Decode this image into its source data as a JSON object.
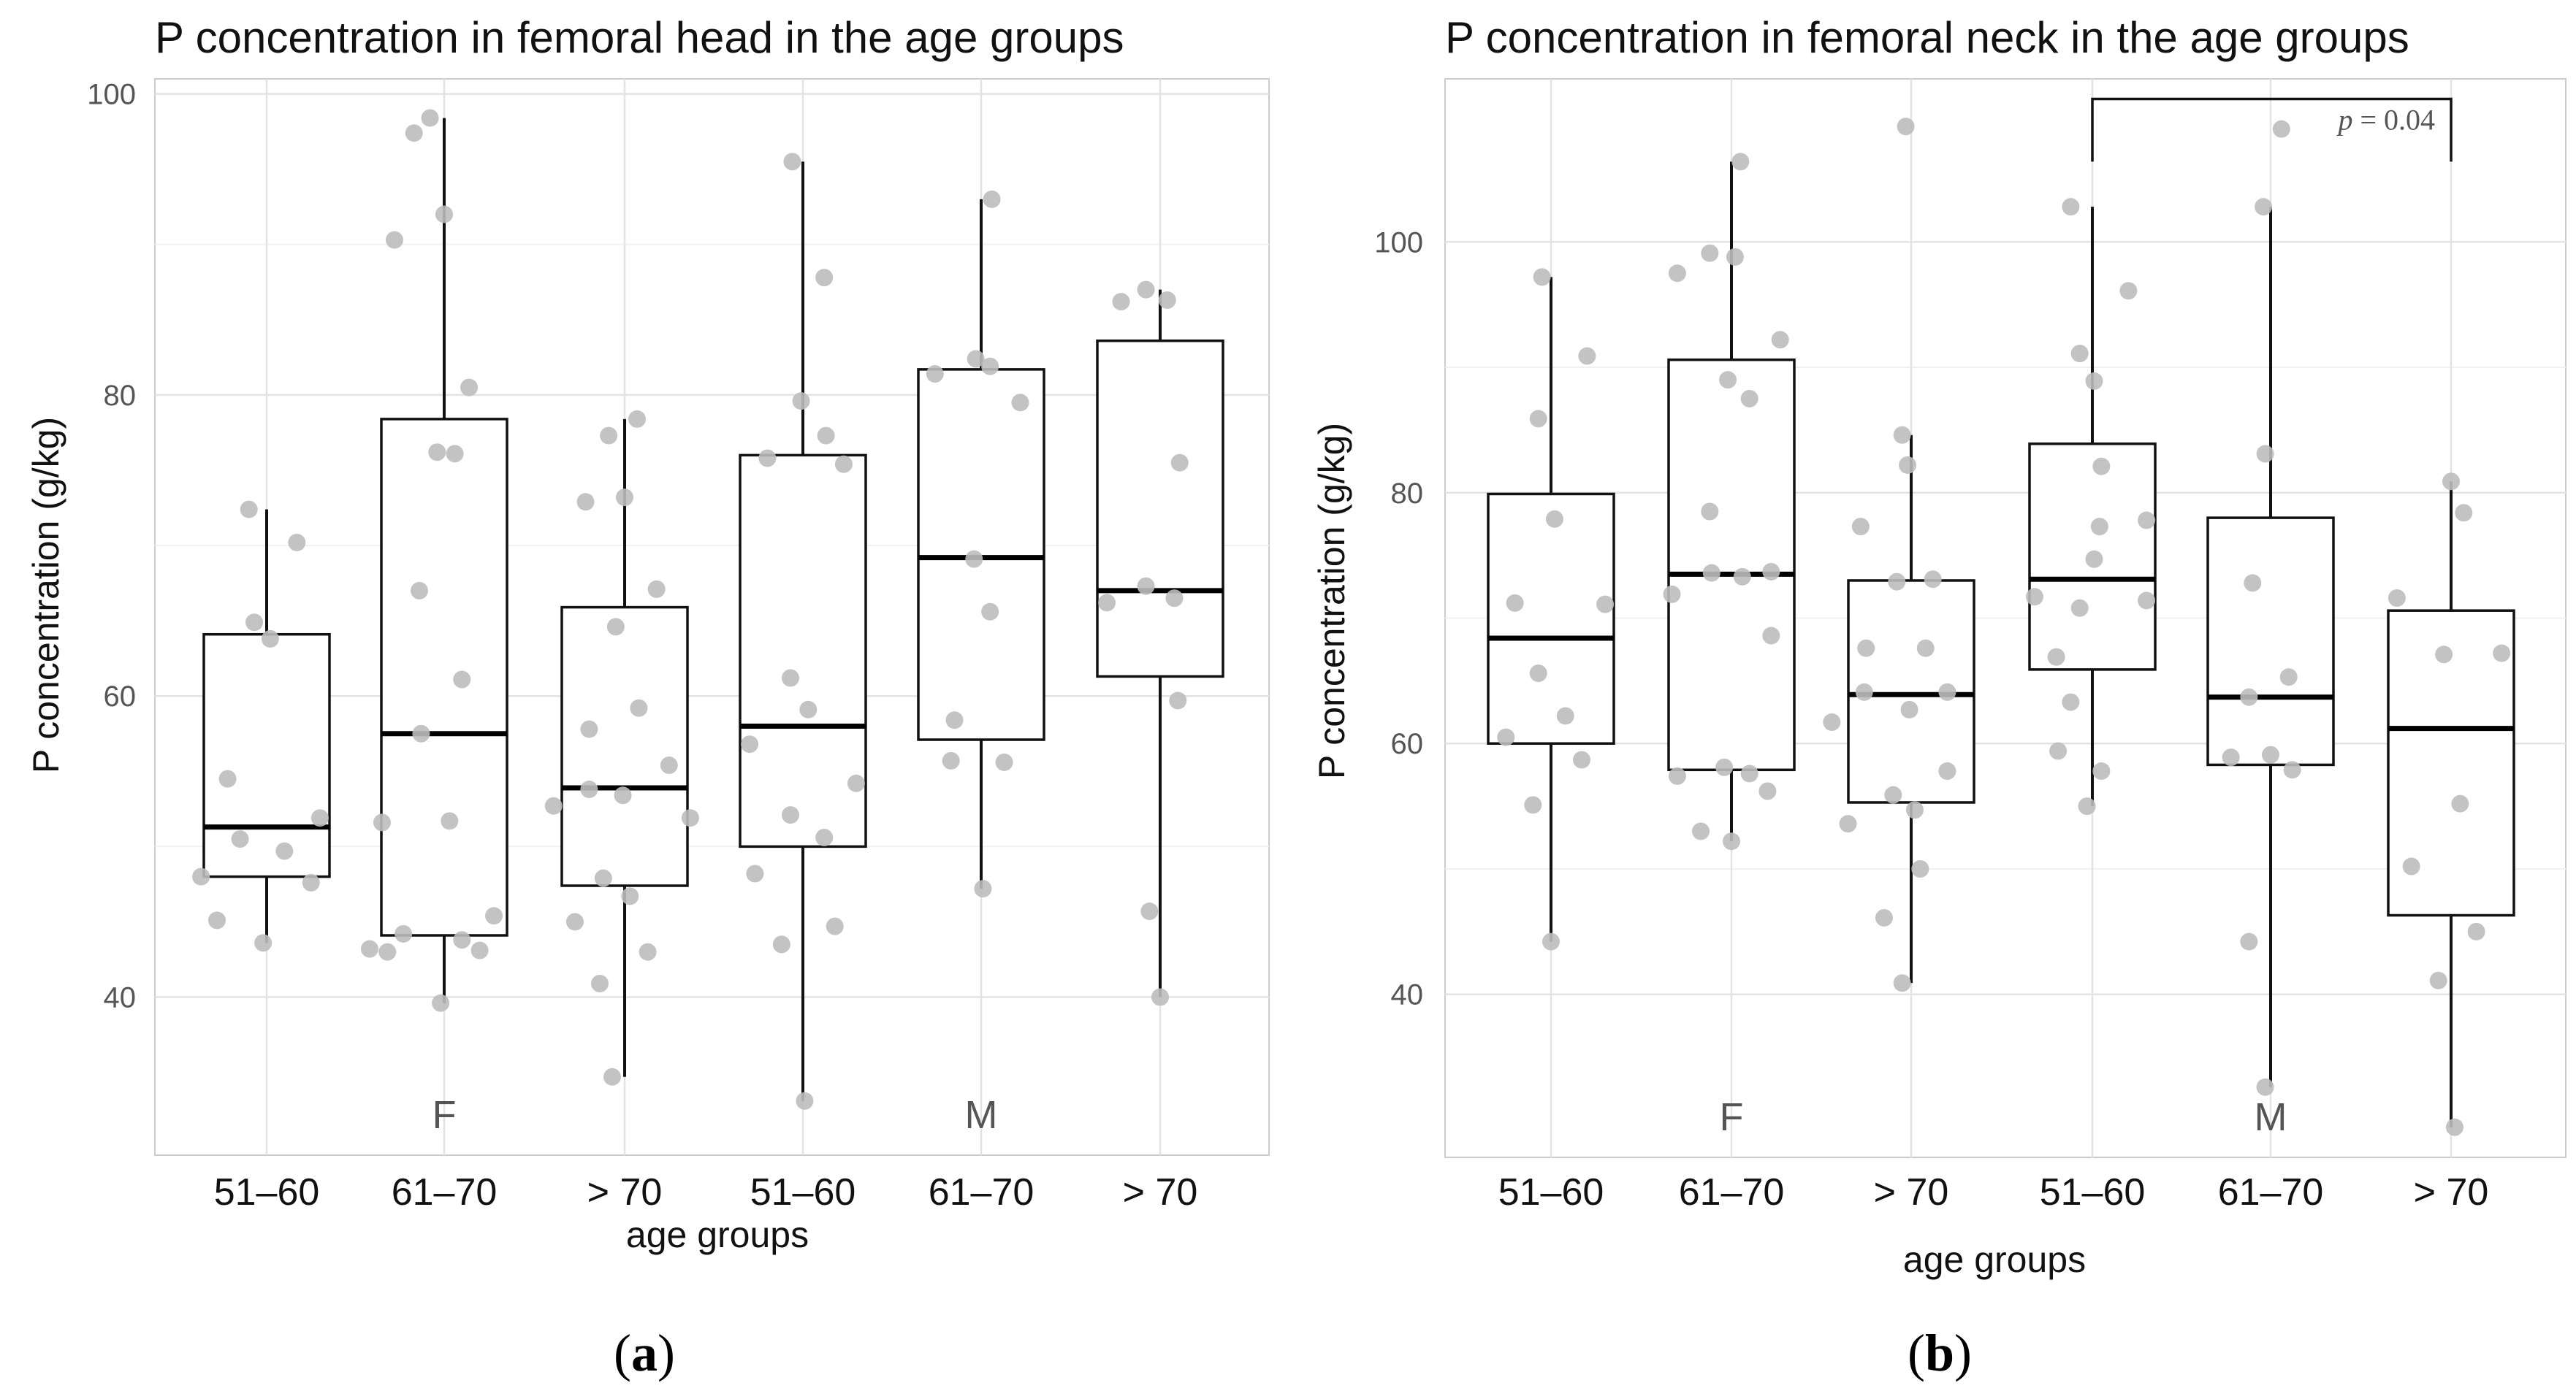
{
  "panel_labels": [
    {
      "open": "(",
      "letter": "a",
      "close": ")"
    },
    {
      "open": "(",
      "letter": "b",
      "close": ")"
    }
  ],
  "chart_data": [
    {
      "type": "box",
      "title": "P concentration in   femoral head in the age groups",
      "xlabel": "age groups",
      "ylabel": "P concentration  (g/kg)",
      "ylim": [
        29.5,
        101
      ],
      "yticks": [
        40,
        60,
        80,
        100
      ],
      "categories": [
        "51–60",
        "61–70",
        "> 70",
        "51–60",
        "61–70",
        "> 70"
      ],
      "group_labels": [
        {
          "label": "F",
          "category_index": 1
        },
        {
          "label": "M",
          "category_index": 4
        }
      ],
      "boxes": [
        {
          "q1": 48.0,
          "median": 51.3,
          "q3": 64.1,
          "whisker_low": 43.6,
          "whisker_high": 72.4
        },
        {
          "q1": 44.1,
          "median": 57.5,
          "q3": 78.4,
          "whisker_low": 39.6,
          "whisker_high": 98.4
        },
        {
          "q1": 47.4,
          "median": 53.9,
          "q3": 65.9,
          "whisker_low": 34.7,
          "whisker_high": 78.4
        },
        {
          "q1": 50.0,
          "median": 58.0,
          "q3": 76.0,
          "whisker_low": 33.1,
          "whisker_high": 95.5
        },
        {
          "q1": 57.1,
          "median": 69.2,
          "q3": 81.7,
          "whisker_low": 47.2,
          "whisker_high": 93.0
        },
        {
          "q1": 61.3,
          "median": 67.0,
          "q3": 83.6,
          "whisker_low": 40.0,
          "whisker_high": 87.0
        }
      ],
      "points": [
        {
          "cat": 0,
          "dx": -0.1,
          "y": 72.4
        },
        {
          "cat": 0,
          "dx": 0.17,
          "y": 70.2
        },
        {
          "cat": 0,
          "dx": -0.07,
          "y": 64.9
        },
        {
          "cat": 0,
          "dx": 0.02,
          "y": 63.8
        },
        {
          "cat": 0,
          "dx": -0.22,
          "y": 54.5
        },
        {
          "cat": 0,
          "dx": 0.3,
          "y": 51.9
        },
        {
          "cat": 0,
          "dx": -0.15,
          "y": 50.5
        },
        {
          "cat": 0,
          "dx": 0.1,
          "y": 49.7
        },
        {
          "cat": 0,
          "dx": -0.37,
          "y": 48.0
        },
        {
          "cat": 0,
          "dx": 0.25,
          "y": 47.6
        },
        {
          "cat": 0,
          "dx": -0.28,
          "y": 45.1
        },
        {
          "cat": 0,
          "dx": -0.02,
          "y": 43.6
        },
        {
          "cat": 1,
          "dx": -0.08,
          "y": 98.4
        },
        {
          "cat": 1,
          "dx": -0.17,
          "y": 97.4
        },
        {
          "cat": 1,
          "dx": 0.0,
          "y": 92.0
        },
        {
          "cat": 1,
          "dx": -0.28,
          "y": 90.3
        },
        {
          "cat": 1,
          "dx": 0.14,
          "y": 80.5
        },
        {
          "cat": 1,
          "dx": -0.04,
          "y": 76.2
        },
        {
          "cat": 1,
          "dx": 0.06,
          "y": 76.1
        },
        {
          "cat": 1,
          "dx": -0.14,
          "y": 67.0
        },
        {
          "cat": 1,
          "dx": 0.1,
          "y": 61.1
        },
        {
          "cat": 1,
          "dx": -0.13,
          "y": 57.5
        },
        {
          "cat": 1,
          "dx": -0.35,
          "y": 51.6
        },
        {
          "cat": 1,
          "dx": 0.03,
          "y": 51.7
        },
        {
          "cat": 1,
          "dx": 0.28,
          "y": 45.4
        },
        {
          "cat": 1,
          "dx": -0.23,
          "y": 44.2
        },
        {
          "cat": 1,
          "dx": 0.1,
          "y": 43.8
        },
        {
          "cat": 1,
          "dx": -0.42,
          "y": 43.2
        },
        {
          "cat": 1,
          "dx": -0.32,
          "y": 43.0
        },
        {
          "cat": 1,
          "dx": 0.2,
          "y": 43.1
        },
        {
          "cat": 1,
          "dx": -0.02,
          "y": 39.6
        },
        {
          "cat": 2,
          "dx": 0.07,
          "y": 78.4
        },
        {
          "cat": 2,
          "dx": -0.09,
          "y": 77.3
        },
        {
          "cat": 2,
          "dx": 0.0,
          "y": 73.2
        },
        {
          "cat": 2,
          "dx": -0.22,
          "y": 72.9
        },
        {
          "cat": 2,
          "dx": 0.18,
          "y": 67.1
        },
        {
          "cat": 2,
          "dx": -0.05,
          "y": 64.6
        },
        {
          "cat": 2,
          "dx": 0.08,
          "y": 59.2
        },
        {
          "cat": 2,
          "dx": -0.2,
          "y": 57.8
        },
        {
          "cat": 2,
          "dx": 0.25,
          "y": 55.4
        },
        {
          "cat": 2,
          "dx": -0.2,
          "y": 53.8
        },
        {
          "cat": 2,
          "dx": -0.01,
          "y": 53.4
        },
        {
          "cat": 2,
          "dx": -0.4,
          "y": 52.7
        },
        {
          "cat": 2,
          "dx": 0.37,
          "y": 51.9
        },
        {
          "cat": 2,
          "dx": -0.12,
          "y": 47.9
        },
        {
          "cat": 2,
          "dx": 0.03,
          "y": 46.7
        },
        {
          "cat": 2,
          "dx": -0.28,
          "y": 45.0
        },
        {
          "cat": 2,
          "dx": 0.13,
          "y": 43.0
        },
        {
          "cat": 2,
          "dx": -0.14,
          "y": 40.9
        },
        {
          "cat": 2,
          "dx": -0.07,
          "y": 34.7
        },
        {
          "cat": 3,
          "dx": -0.06,
          "y": 95.5
        },
        {
          "cat": 3,
          "dx": 0.12,
          "y": 87.8
        },
        {
          "cat": 3,
          "dx": -0.01,
          "y": 79.6
        },
        {
          "cat": 3,
          "dx": -0.2,
          "y": 75.8
        },
        {
          "cat": 3,
          "dx": 0.13,
          "y": 77.3
        },
        {
          "cat": 3,
          "dx": 0.23,
          "y": 75.4
        },
        {
          "cat": 3,
          "dx": -0.07,
          "y": 61.2
        },
        {
          "cat": 3,
          "dx": 0.03,
          "y": 59.1
        },
        {
          "cat": 3,
          "dx": -0.3,
          "y": 56.8
        },
        {
          "cat": 3,
          "dx": 0.3,
          "y": 54.2
        },
        {
          "cat": 3,
          "dx": -0.07,
          "y": 52.1
        },
        {
          "cat": 3,
          "dx": 0.12,
          "y": 50.6
        },
        {
          "cat": 3,
          "dx": -0.27,
          "y": 48.2
        },
        {
          "cat": 3,
          "dx": 0.18,
          "y": 44.7
        },
        {
          "cat": 3,
          "dx": -0.12,
          "y": 43.5
        },
        {
          "cat": 3,
          "dx": 0.01,
          "y": 33.1
        },
        {
          "cat": 4,
          "dx": 0.06,
          "y": 93.0
        },
        {
          "cat": 4,
          "dx": -0.03,
          "y": 82.4
        },
        {
          "cat": 4,
          "dx": -0.26,
          "y": 81.4
        },
        {
          "cat": 4,
          "dx": 0.05,
          "y": 81.9
        },
        {
          "cat": 4,
          "dx": 0.22,
          "y": 79.5
        },
        {
          "cat": 4,
          "dx": -0.04,
          "y": 69.1
        },
        {
          "cat": 4,
          "dx": 0.05,
          "y": 65.6
        },
        {
          "cat": 4,
          "dx": -0.15,
          "y": 58.4
        },
        {
          "cat": 4,
          "dx": -0.17,
          "y": 55.7
        },
        {
          "cat": 4,
          "dx": 0.13,
          "y": 55.6
        },
        {
          "cat": 4,
          "dx": 0.01,
          "y": 47.2
        },
        {
          "cat": 5,
          "dx": -0.22,
          "y": 86.2
        },
        {
          "cat": 5,
          "dx": -0.08,
          "y": 87.0
        },
        {
          "cat": 5,
          "dx": 0.04,
          "y": 86.3
        },
        {
          "cat": 5,
          "dx": 0.11,
          "y": 75.5
        },
        {
          "cat": 5,
          "dx": -0.3,
          "y": 66.2
        },
        {
          "cat": 5,
          "dx": -0.08,
          "y": 67.3
        },
        {
          "cat": 5,
          "dx": 0.08,
          "y": 66.5
        },
        {
          "cat": 5,
          "dx": 0.1,
          "y": 59.7
        },
        {
          "cat": 5,
          "dx": -0.06,
          "y": 45.7
        },
        {
          "cat": 5,
          "dx": 0.0,
          "y": 40.0
        }
      ]
    },
    {
      "type": "box",
      "title": "P concentration in   femoral neck in the age groups",
      "xlabel": "age groups",
      "ylabel": "P concentration  (g/kg)",
      "ylim": [
        27,
        113
      ],
      "yticks": [
        40,
        60,
        80,
        100
      ],
      "categories": [
        "51–60",
        "61–70",
        "> 70",
        "51–60",
        "61–70",
        "> 70"
      ],
      "group_labels": [
        {
          "label": "F",
          "category_index": 1
        },
        {
          "label": "M",
          "category_index": 4
        }
      ],
      "annotation": {
        "text_var": "p",
        "text_eq": " = 0.04",
        "from_category": 3,
        "to_category": 5,
        "y": 111.4,
        "tick_to": 106.4
      },
      "boxes": [
        {
          "q1": 60.0,
          "median": 68.4,
          "q3": 79.9,
          "whisker_low": 44.2,
          "whisker_high": 97.2
        },
        {
          "q1": 57.9,
          "median": 73.5,
          "q3": 90.6,
          "whisker_low": 52.2,
          "whisker_high": 106.4
        },
        {
          "q1": 55.3,
          "median": 63.9,
          "q3": 73.0,
          "whisker_low": 40.9,
          "whisker_high": 84.6
        },
        {
          "q1": 65.9,
          "median": 73.1,
          "q3": 83.9,
          "whisker_low": 55.0,
          "whisker_high": 102.8
        },
        {
          "q1": 58.3,
          "median": 63.7,
          "q3": 78.0,
          "whisker_low": 32.6,
          "whisker_high": 102.8
        },
        {
          "q1": 46.3,
          "median": 61.2,
          "q3": 70.6,
          "whisker_low": 29.4,
          "whisker_high": 80.9
        }
      ],
      "points": [
        {
          "cat": 0,
          "dx": -0.05,
          "y": 97.2
        },
        {
          "cat": 0,
          "dx": 0.2,
          "y": 90.9
        },
        {
          "cat": 0,
          "dx": -0.07,
          "y": 85.9
        },
        {
          "cat": 0,
          "dx": 0.02,
          "y": 77.9
        },
        {
          "cat": 0,
          "dx": -0.2,
          "y": 71.2
        },
        {
          "cat": 0,
          "dx": 0.3,
          "y": 71.1
        },
        {
          "cat": 0,
          "dx": -0.07,
          "y": 65.6
        },
        {
          "cat": 0,
          "dx": 0.08,
          "y": 62.2
        },
        {
          "cat": 0,
          "dx": -0.25,
          "y": 60.5
        },
        {
          "cat": 0,
          "dx": 0.17,
          "y": 58.7
        },
        {
          "cat": 0,
          "dx": -0.1,
          "y": 55.1
        },
        {
          "cat": 0,
          "dx": 0.0,
          "y": 44.2
        },
        {
          "cat": 1,
          "dx": 0.05,
          "y": 106.4
        },
        {
          "cat": 1,
          "dx": -0.12,
          "y": 99.1
        },
        {
          "cat": 1,
          "dx": 0.02,
          "y": 98.8
        },
        {
          "cat": 1,
          "dx": -0.3,
          "y": 97.5
        },
        {
          "cat": 1,
          "dx": 0.27,
          "y": 92.2
        },
        {
          "cat": 1,
          "dx": -0.02,
          "y": 89.0
        },
        {
          "cat": 1,
          "dx": 0.1,
          "y": 87.5
        },
        {
          "cat": 1,
          "dx": -0.12,
          "y": 78.5
        },
        {
          "cat": 1,
          "dx": -0.11,
          "y": 73.6
        },
        {
          "cat": 1,
          "dx": 0.06,
          "y": 73.3
        },
        {
          "cat": 1,
          "dx": 0.22,
          "y": 73.7
        },
        {
          "cat": 1,
          "dx": -0.33,
          "y": 71.9
        },
        {
          "cat": 1,
          "dx": 0.22,
          "y": 68.6
        },
        {
          "cat": 1,
          "dx": -0.3,
          "y": 57.4
        },
        {
          "cat": 1,
          "dx": -0.04,
          "y": 58.1
        },
        {
          "cat": 1,
          "dx": 0.1,
          "y": 57.6
        },
        {
          "cat": 1,
          "dx": 0.2,
          "y": 56.2
        },
        {
          "cat": 1,
          "dx": -0.17,
          "y": 53.0
        },
        {
          "cat": 1,
          "dx": 0.0,
          "y": 52.2
        },
        {
          "cat": 2,
          "dx": -0.03,
          "y": 109.2
        },
        {
          "cat": 2,
          "dx": -0.05,
          "y": 84.6
        },
        {
          "cat": 2,
          "dx": -0.02,
          "y": 82.2
        },
        {
          "cat": 2,
          "dx": -0.28,
          "y": 77.3
        },
        {
          "cat": 2,
          "dx": -0.08,
          "y": 72.9
        },
        {
          "cat": 2,
          "dx": 0.12,
          "y": 73.1
        },
        {
          "cat": 2,
          "dx": -0.25,
          "y": 67.6
        },
        {
          "cat": 2,
          "dx": 0.08,
          "y": 67.6
        },
        {
          "cat": 2,
          "dx": -0.26,
          "y": 64.1
        },
        {
          "cat": 2,
          "dx": 0.2,
          "y": 64.1
        },
        {
          "cat": 2,
          "dx": -0.01,
          "y": 62.7
        },
        {
          "cat": 2,
          "dx": -0.44,
          "y": 61.7
        },
        {
          "cat": 2,
          "dx": 0.2,
          "y": 57.8
        },
        {
          "cat": 2,
          "dx": -0.1,
          "y": 55.9
        },
        {
          "cat": 2,
          "dx": 0.02,
          "y": 54.7
        },
        {
          "cat": 2,
          "dx": -0.35,
          "y": 53.6
        },
        {
          "cat": 2,
          "dx": 0.05,
          "y": 50.0
        },
        {
          "cat": 2,
          "dx": -0.15,
          "y": 46.1
        },
        {
          "cat": 2,
          "dx": -0.05,
          "y": 40.9
        },
        {
          "cat": 3,
          "dx": -0.12,
          "y": 102.8
        },
        {
          "cat": 3,
          "dx": 0.2,
          "y": 96.1
        },
        {
          "cat": 3,
          "dx": -0.07,
          "y": 91.1
        },
        {
          "cat": 3,
          "dx": 0.01,
          "y": 88.9
        },
        {
          "cat": 3,
          "dx": 0.05,
          "y": 82.1
        },
        {
          "cat": 3,
          "dx": 0.3,
          "y": 77.8
        },
        {
          "cat": 3,
          "dx": 0.04,
          "y": 77.3
        },
        {
          "cat": 3,
          "dx": 0.01,
          "y": 74.7
        },
        {
          "cat": 3,
          "dx": -0.32,
          "y": 71.7
        },
        {
          "cat": 3,
          "dx": 0.3,
          "y": 71.4
        },
        {
          "cat": 3,
          "dx": -0.07,
          "y": 70.8
        },
        {
          "cat": 3,
          "dx": -0.2,
          "y": 66.9
        },
        {
          "cat": 3,
          "dx": -0.12,
          "y": 63.3
        },
        {
          "cat": 3,
          "dx": -0.19,
          "y": 59.4
        },
        {
          "cat": 3,
          "dx": 0.05,
          "y": 57.8
        },
        {
          "cat": 3,
          "dx": -0.03,
          "y": 55.0
        },
        {
          "cat": 4,
          "dx": 0.06,
          "y": 109.0
        },
        {
          "cat": 4,
          "dx": -0.04,
          "y": 102.8
        },
        {
          "cat": 4,
          "dx": -0.03,
          "y": 83.1
        },
        {
          "cat": 4,
          "dx": -0.1,
          "y": 72.8
        },
        {
          "cat": 4,
          "dx": 0.1,
          "y": 65.3
        },
        {
          "cat": 4,
          "dx": -0.12,
          "y": 63.7
        },
        {
          "cat": 4,
          "dx": 0.0,
          "y": 59.1
        },
        {
          "cat": 4,
          "dx": -0.22,
          "y": 58.9
        },
        {
          "cat": 4,
          "dx": 0.12,
          "y": 57.9
        },
        {
          "cat": 4,
          "dx": -0.12,
          "y": 44.2
        },
        {
          "cat": 4,
          "dx": -0.03,
          "y": 32.6
        },
        {
          "cat": 5,
          "dx": 0.0,
          "y": 80.9
        },
        {
          "cat": 5,
          "dx": 0.07,
          "y": 78.4
        },
        {
          "cat": 5,
          "dx": -0.3,
          "y": 71.6
        },
        {
          "cat": 5,
          "dx": -0.04,
          "y": 67.1
        },
        {
          "cat": 5,
          "dx": 0.28,
          "y": 67.2
        },
        {
          "cat": 5,
          "dx": 0.05,
          "y": 55.2
        },
        {
          "cat": 5,
          "dx": -0.22,
          "y": 50.2
        },
        {
          "cat": 5,
          "dx": 0.14,
          "y": 45.0
        },
        {
          "cat": 5,
          "dx": -0.07,
          "y": 41.1
        },
        {
          "cat": 5,
          "dx": 0.02,
          "y": 29.4
        }
      ]
    }
  ]
}
